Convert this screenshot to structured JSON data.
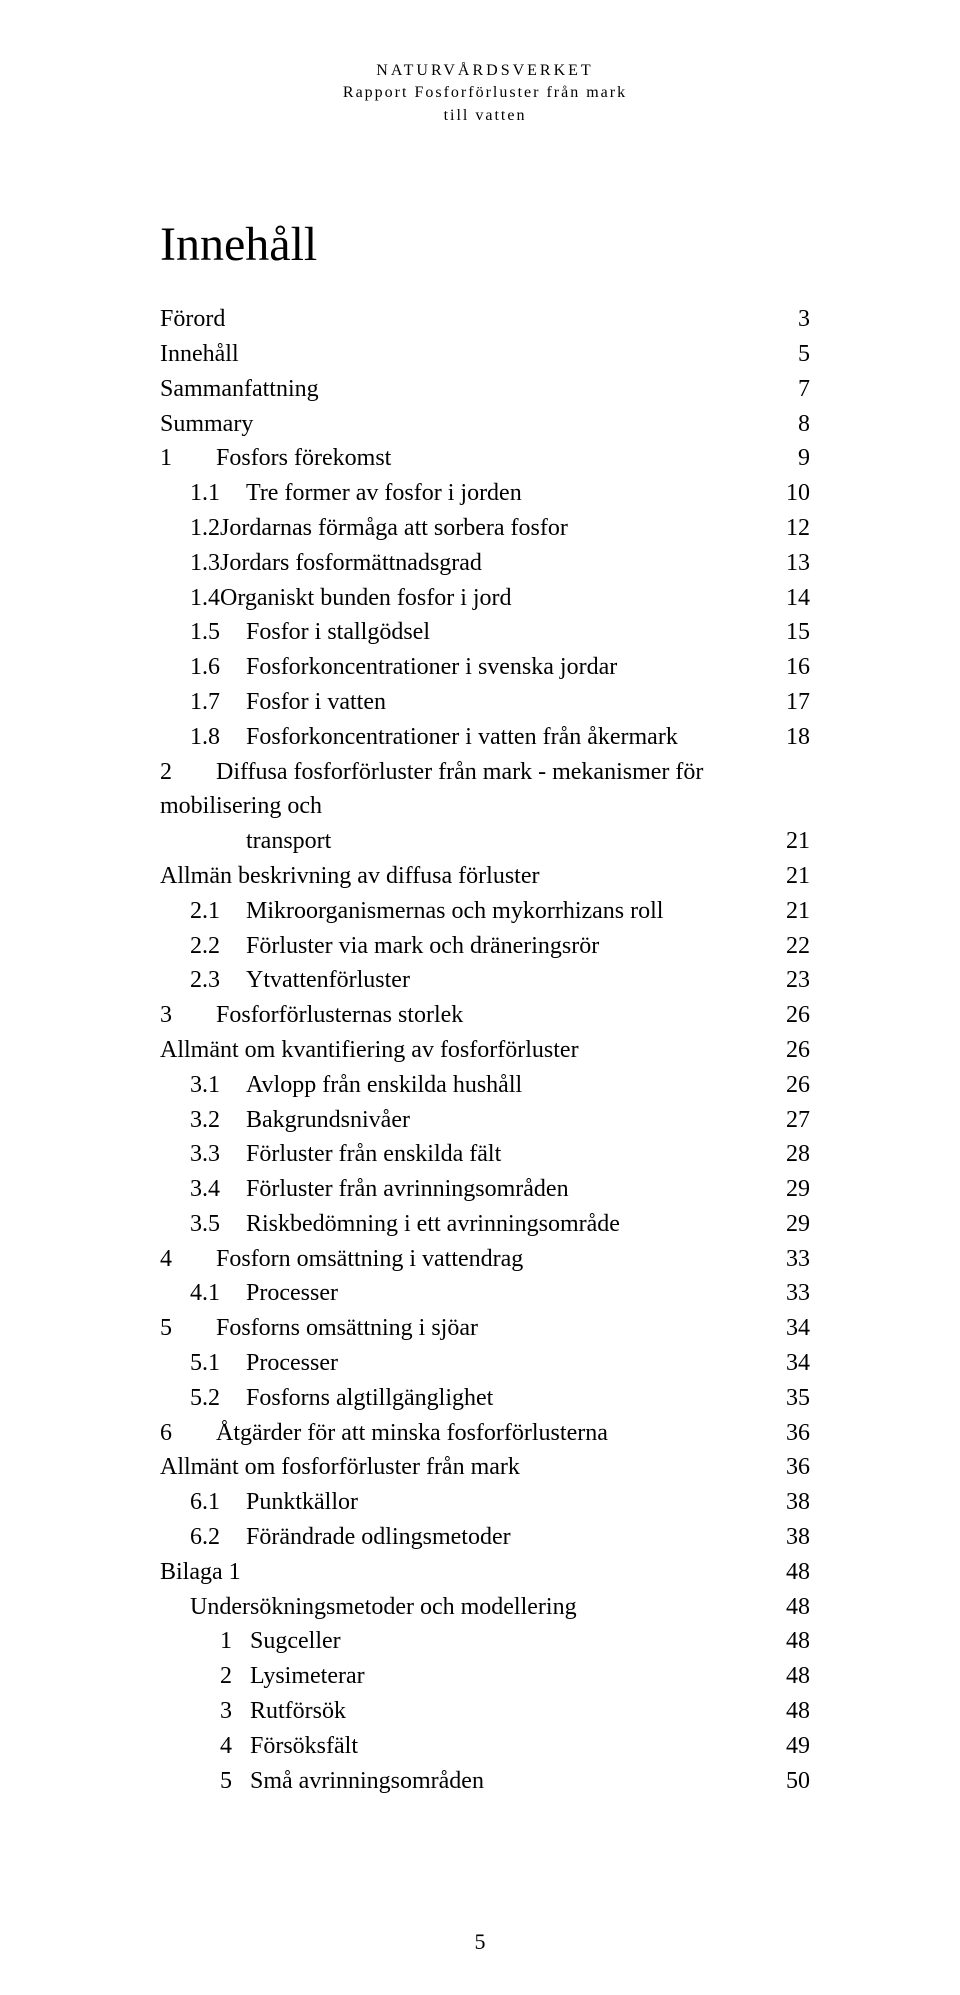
{
  "header": {
    "line1": "NATURVÅRDSVERKET",
    "line2": "Rapport Fosforförluster från mark",
    "line3": "till vatten"
  },
  "title": "Innehåll",
  "footer_page": "5",
  "toc": [
    {
      "indent": "indent-0",
      "num": "",
      "numClass": "",
      "label": "Förord",
      "page": "3"
    },
    {
      "indent": "indent-0",
      "num": "",
      "numClass": "",
      "label": "Innehåll",
      "page": "5"
    },
    {
      "indent": "indent-0",
      "num": "",
      "numClass": "",
      "label": "Sammanfattning",
      "page": "7"
    },
    {
      "indent": "indent-0",
      "num": "",
      "numClass": "",
      "label": "Summary",
      "page": "8"
    },
    {
      "indent": "indent-1",
      "num": "1",
      "numClass": "num",
      "label": "Fosfors förekomst",
      "page": "9"
    },
    {
      "indent": "indent-2",
      "num": "1.1",
      "numClass": "num",
      "label": "Tre former av fosfor i jorden",
      "page": "10"
    },
    {
      "indent": "indent-2",
      "num": "1.2",
      "numClass": "",
      "label": "Jordarnas förmåga att sorbera fosfor",
      "page": "12"
    },
    {
      "indent": "indent-2",
      "num": "1.3",
      "numClass": "",
      "label": "Jordars fosformättnadsgrad",
      "page": "13"
    },
    {
      "indent": "indent-2",
      "num": "1.4",
      "numClass": "",
      "label": "Organiskt bunden fosfor i jord",
      "page": "14"
    },
    {
      "indent": "indent-2",
      "num": "1.5",
      "numClass": "num",
      "label": "Fosfor i stallgödsel",
      "page": "15"
    },
    {
      "indent": "indent-2",
      "num": "1.6",
      "numClass": "num",
      "label": "Fosforkoncentrationer i svenska jordar",
      "page": "16"
    },
    {
      "indent": "indent-2",
      "num": "1.7",
      "numClass": "num",
      "label": "Fosfor i vatten",
      "page": "17"
    },
    {
      "indent": "indent-2",
      "num": "1.8",
      "numClass": "num",
      "label": "Fosforkoncentrationer i vatten från åkermark",
      "page": "18"
    },
    {
      "indent": "indent-1",
      "num": "2",
      "numClass": "num",
      "label": "Diffusa fosforförluster från mark - mekanismer för  mobilisering och",
      "page": ""
    },
    {
      "indent": "indent-cont",
      "num": "",
      "numClass": "",
      "label": "transport",
      "page": "21"
    },
    {
      "indent": "indent-0",
      "num": "",
      "numClass": "",
      "label": "Allmän beskrivning av diffusa förluster",
      "page": "21"
    },
    {
      "indent": "indent-2",
      "num": "2.1",
      "numClass": "num",
      "label": "Mikroorganismernas och mykorrhizans roll",
      "page": "21"
    },
    {
      "indent": "indent-2",
      "num": "2.2",
      "numClass": "num",
      "label": "Förluster via mark och dräneringsrör",
      "page": "22"
    },
    {
      "indent": "indent-2",
      "num": "2.3",
      "numClass": "num",
      "label": "Ytvattenförluster",
      "page": "23"
    },
    {
      "indent": "indent-1",
      "num": "3",
      "numClass": "num",
      "label": "Fosforförlusternas storlek",
      "page": "26"
    },
    {
      "indent": "indent-0",
      "num": "",
      "numClass": "",
      "label": "Allmänt om kvantifiering av fosforförluster",
      "page": "26"
    },
    {
      "indent": "indent-2",
      "num": "3.1",
      "numClass": "num",
      "label": "Avlopp från enskilda hushåll",
      "page": "26"
    },
    {
      "indent": "indent-2",
      "num": "3.2",
      "numClass": "num",
      "label": "Bakgrundsnivåer",
      "page": "27"
    },
    {
      "indent": "indent-2",
      "num": "3.3",
      "numClass": "num",
      "label": "Förluster från enskilda fält",
      "page": "28"
    },
    {
      "indent": "indent-2",
      "num": "3.4",
      "numClass": "num",
      "label": "Förluster från avrinningsområden",
      "page": "29"
    },
    {
      "indent": "indent-2",
      "num": "3.5",
      "numClass": "num",
      "label": "Riskbedömning i ett avrinningsområde",
      "page": "29"
    },
    {
      "indent": "indent-1",
      "num": "4",
      "numClass": "num",
      "label": "Fosforn omsättning i  vattendrag",
      "page": "33"
    },
    {
      "indent": "indent-2",
      "num": "4.1",
      "numClass": "num",
      "label": "Processer",
      "page": "33"
    },
    {
      "indent": "indent-1",
      "num": "5",
      "numClass": "num",
      "label": "Fosforns omsättning i sjöar",
      "page": "34"
    },
    {
      "indent": "indent-2",
      "num": "5.1",
      "numClass": "num",
      "label": "Processer",
      "page": "34"
    },
    {
      "indent": "indent-2",
      "num": "5.2",
      "numClass": "num",
      "label": "Fosforns algtillgänglighet",
      "page": "35"
    },
    {
      "indent": "indent-1",
      "num": "6",
      "numClass": "num",
      "label": "Åtgärder för att minska fosforförlusterna",
      "page": "36"
    },
    {
      "indent": "indent-0",
      "num": "",
      "numClass": "",
      "label": "Allmänt om fosforförluster från mark",
      "page": "36"
    },
    {
      "indent": "indent-2",
      "num": "6.1",
      "numClass": "num",
      "label": "Punktkällor",
      "page": "38"
    },
    {
      "indent": "indent-2",
      "num": "6.2",
      "numClass": "num",
      "label": "Förändrade odlingsmetoder",
      "page": "38"
    },
    {
      "indent": "indent-0",
      "num": "",
      "numClass": "",
      "label": "Bilaga 1",
      "page": "48"
    },
    {
      "indent": "indent-app",
      "num": "",
      "numClass": "",
      "label": "Undersökningsmetoder och modellering",
      "page": "48"
    },
    {
      "indent": "indent-appn",
      "num": "1",
      "numClass": "num-narrow",
      "label": "Sugceller",
      "page": "48"
    },
    {
      "indent": "indent-appn",
      "num": "2",
      "numClass": "num-narrow",
      "label": "Lysimeterar",
      "page": "48"
    },
    {
      "indent": "indent-appn",
      "num": "3",
      "numClass": "num-narrow",
      "label": "Rutförsök",
      "page": "48"
    },
    {
      "indent": "indent-appn",
      "num": "4",
      "numClass": "num-narrow",
      "label": "Försöksfält",
      "page": "49"
    },
    {
      "indent": "indent-appn",
      "num": "5",
      "numClass": "num-narrow",
      "label": "Små avrinningsområden",
      "page": "50"
    }
  ]
}
